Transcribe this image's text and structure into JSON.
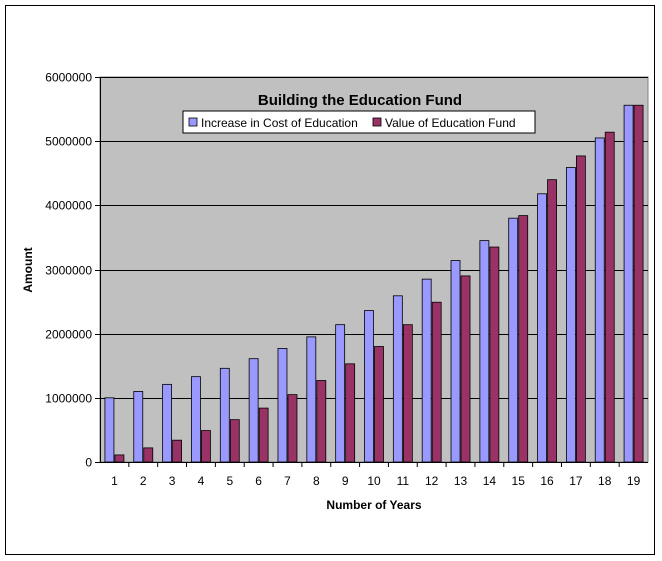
{
  "chart_data": {
    "type": "bar",
    "title": "Building the Education Fund",
    "xlabel": "Number of Years",
    "ylabel": "Amount",
    "ylim": [
      0,
      6000000
    ],
    "yticks": [
      0,
      1000000,
      2000000,
      3000000,
      4000000,
      5000000,
      6000000
    ],
    "ytick_labels": [
      "0",
      "1000000",
      "2000000",
      "3000000",
      "4000000",
      "5000000",
      "6000000"
    ],
    "grid": true,
    "legend_position": "top",
    "categories": [
      "1",
      "2",
      "3",
      "4",
      "5",
      "6",
      "7",
      "8",
      "9",
      "10",
      "11",
      "12",
      "13",
      "14",
      "15",
      "16",
      "17",
      "18",
      "19"
    ],
    "series": [
      {
        "name": "Increase in Cost of Education",
        "color": "#9999ff",
        "values": [
          1000000,
          1100000,
          1210000,
          1330000,
          1460000,
          1610000,
          1770000,
          1950000,
          2140000,
          2360000,
          2590000,
          2850000,
          3140000,
          3450000,
          3800000,
          4180000,
          4590000,
          5050000,
          5560000
        ]
      },
      {
        "name": "Value of Education Fund",
        "color": "#993366",
        "values": [
          110000,
          220000,
          340000,
          490000,
          660000,
          840000,
          1050000,
          1270000,
          1530000,
          1800000,
          2140000,
          2490000,
          2900000,
          3350000,
          3840000,
          4400000,
          4770000,
          5140000,
          5560000
        ]
      }
    ],
    "plot_background": "#c0c0c0"
  }
}
